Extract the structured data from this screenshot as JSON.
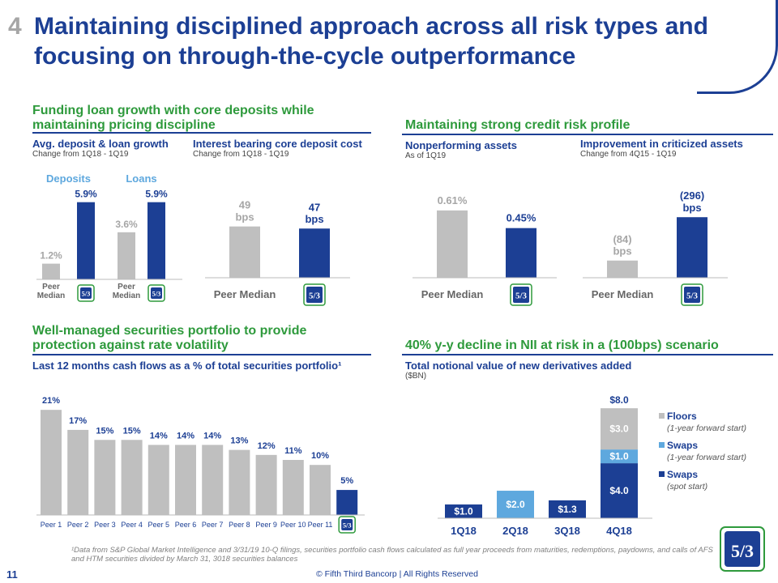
{
  "slide": {
    "number": "4",
    "title": "Maintaining disciplined approach across all risk types and focusing on through-the-cycle outperformance",
    "page": "11",
    "copyright": "© Fifth Third Bancorp | All Rights Reserved",
    "footnote": "¹Data from S&P Global Market Intelligence and 3/31/19 10-Q filings, securities portfolio cash flows calculated as full year proceeds from maturities, redemptions, paydowns, and calls of AFS and HTM securities divided by March 31, 3018  securities balances"
  },
  "sections": {
    "funding": "Funding loan growth with core deposits while maintaining pricing discipline",
    "credit": "Maintaining strong credit risk profile",
    "securities": "Well-managed securities portfolio to provide protection against rate volatility",
    "nii": "40% y-y decline in NII at risk in a (100bps) scenario"
  },
  "colors": {
    "navy": "#1c3f94",
    "gray": "#bfbfbf",
    "lightblue": "#5ea8de",
    "green": "#2e9a3c"
  },
  "chart_data": [
    {
      "type": "bar",
      "title": "Avg. deposit & loan growth",
      "subtitle": "Change from 1Q18 - 1Q19",
      "groups": [
        "Deposits",
        "Loans"
      ],
      "categories": [
        "Peer Median",
        "Fifth Third"
      ],
      "series": [
        {
          "name": "Deposits",
          "values": [
            1.2,
            5.9
          ],
          "labels": [
            "1.2%",
            "5.9%"
          ]
        },
        {
          "name": "Loans",
          "values": [
            3.6,
            5.9
          ],
          "labels": [
            "3.6%",
            "5.9%"
          ]
        }
      ],
      "tick_labels": [
        "Peer Median",
        "Peer Median"
      ],
      "ylim": [
        0,
        6.5
      ]
    },
    {
      "type": "bar",
      "title": "Interest bearing core deposit cost",
      "subtitle": "Change from 1Q18 - 1Q19",
      "categories": [
        "Peer Median",
        "Fifth Third"
      ],
      "values": [
        49,
        47
      ],
      "labels": [
        "49 bps",
        "47 bps"
      ],
      "tick_labels": [
        "Peer Median"
      ],
      "ylim": [
        0,
        65
      ]
    },
    {
      "type": "bar",
      "title": "Nonperforming assets",
      "subtitle": "As of 1Q19",
      "categories": [
        "Peer Median",
        "Fifth Third"
      ],
      "values": [
        0.61,
        0.45
      ],
      "labels": [
        "0.61%",
        "0.45%"
      ],
      "tick_labels": [
        "Peer Median"
      ],
      "ylim": [
        0,
        0.8
      ]
    },
    {
      "type": "bar",
      "title": "Improvement in criticized assets",
      "subtitle": "Change from 4Q15 - 1Q19",
      "categories": [
        "Peer Median",
        "Fifth Third"
      ],
      "values": [
        84,
        296
      ],
      "labels": [
        "(84) bps",
        "(296) bps"
      ],
      "tick_labels": [
        "Peer Median"
      ],
      "ylim": [
        0,
        380
      ]
    },
    {
      "type": "bar",
      "title": "Last 12 months cash flows as a % of total securities portfolio¹",
      "categories": [
        "Peer 1",
        "Peer 2",
        "Peer 3",
        "Peer 4",
        "Peer 5",
        "Peer 6",
        "Peer 7",
        "Peer 8",
        "Peer 9",
        "Peer 10",
        "Peer 11",
        "Fifth Third"
      ],
      "values": [
        21,
        17,
        15,
        15,
        14,
        14,
        14,
        13,
        12,
        11,
        10,
        5
      ],
      "labels": [
        "21%",
        "17%",
        "15%",
        "15%",
        "14%",
        "14%",
        "14%",
        "13%",
        "12%",
        "11%",
        "10%",
        "5%"
      ],
      "ylim": [
        0,
        22
      ]
    },
    {
      "type": "bar",
      "stacked": true,
      "title": "Total notional value of new derivatives added",
      "subtitle": "($BN)",
      "categories": [
        "1Q18",
        "2Q18",
        "3Q18",
        "4Q18"
      ],
      "series": [
        {
          "name": "Swaps",
          "note": "(spot start)",
          "values": [
            1.0,
            0,
            1.3,
            4.0
          ],
          "labels": [
            "$1.0",
            "",
            "$1.3",
            "$4.0"
          ]
        },
        {
          "name": "Swaps",
          "note": "(1-year forward start)",
          "values": [
            0,
            2.0,
            0,
            1.0
          ],
          "labels": [
            "",
            "$2.0",
            "",
            "$1.0"
          ]
        },
        {
          "name": "Floors",
          "note": "(1-year forward start)",
          "values": [
            0,
            0,
            0,
            3.0
          ],
          "labels": [
            "",
            "",
            "",
            "$3.0"
          ]
        }
      ],
      "totals": [
        "",
        "",
        "",
        "$8.0"
      ],
      "ylim": [
        0,
        8.6
      ]
    }
  ]
}
